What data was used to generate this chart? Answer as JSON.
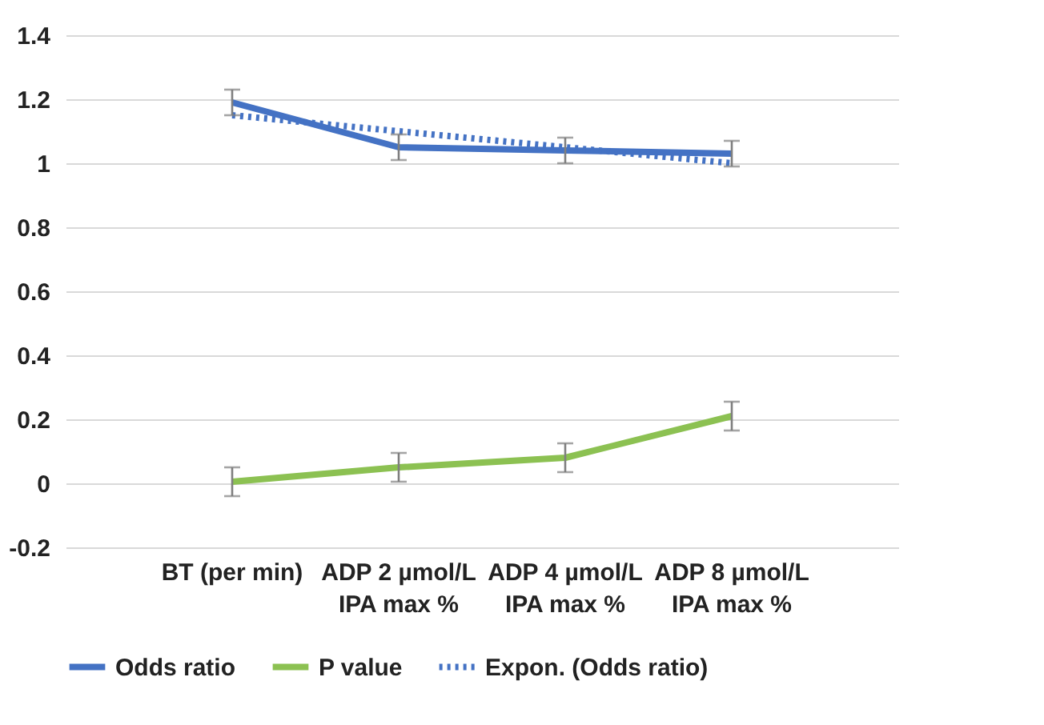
{
  "chart_data": {
    "type": "line",
    "categories": [
      "BT (per min)",
      "ADP 2 µmol/L\nIPA max %",
      "ADP 4 µmol/L\nIPA max %",
      "ADP 8 µmol/L\nIPA max %"
    ],
    "series": [
      {
        "name": "Odds ratio",
        "color": "#4472c4",
        "values": [
          1.19,
          1.05,
          1.04,
          1.03
        ],
        "errors": [
          0.04,
          0.04,
          0.04,
          0.04
        ],
        "line_style": "solid"
      },
      {
        "name": "P value",
        "color": "#8cc152",
        "values": [
          0.005,
          0.05,
          0.08,
          0.21
        ],
        "errors": [
          0.045,
          0.045,
          0.045,
          0.045
        ],
        "line_style": "solid"
      },
      {
        "name": "Expon. (Odds ratio)",
        "color": "#4472c4",
        "values": [
          1.15,
          1.1,
          1.05,
          1.0
        ],
        "line_style": "dotted"
      }
    ],
    "ylim": [
      -0.2,
      1.4
    ],
    "yticks": [
      -0.2,
      0,
      0.2,
      0.4,
      0.6,
      0.8,
      1,
      1.2,
      1.4
    ],
    "grid": "y",
    "legend": "bottom",
    "marker": "none"
  }
}
